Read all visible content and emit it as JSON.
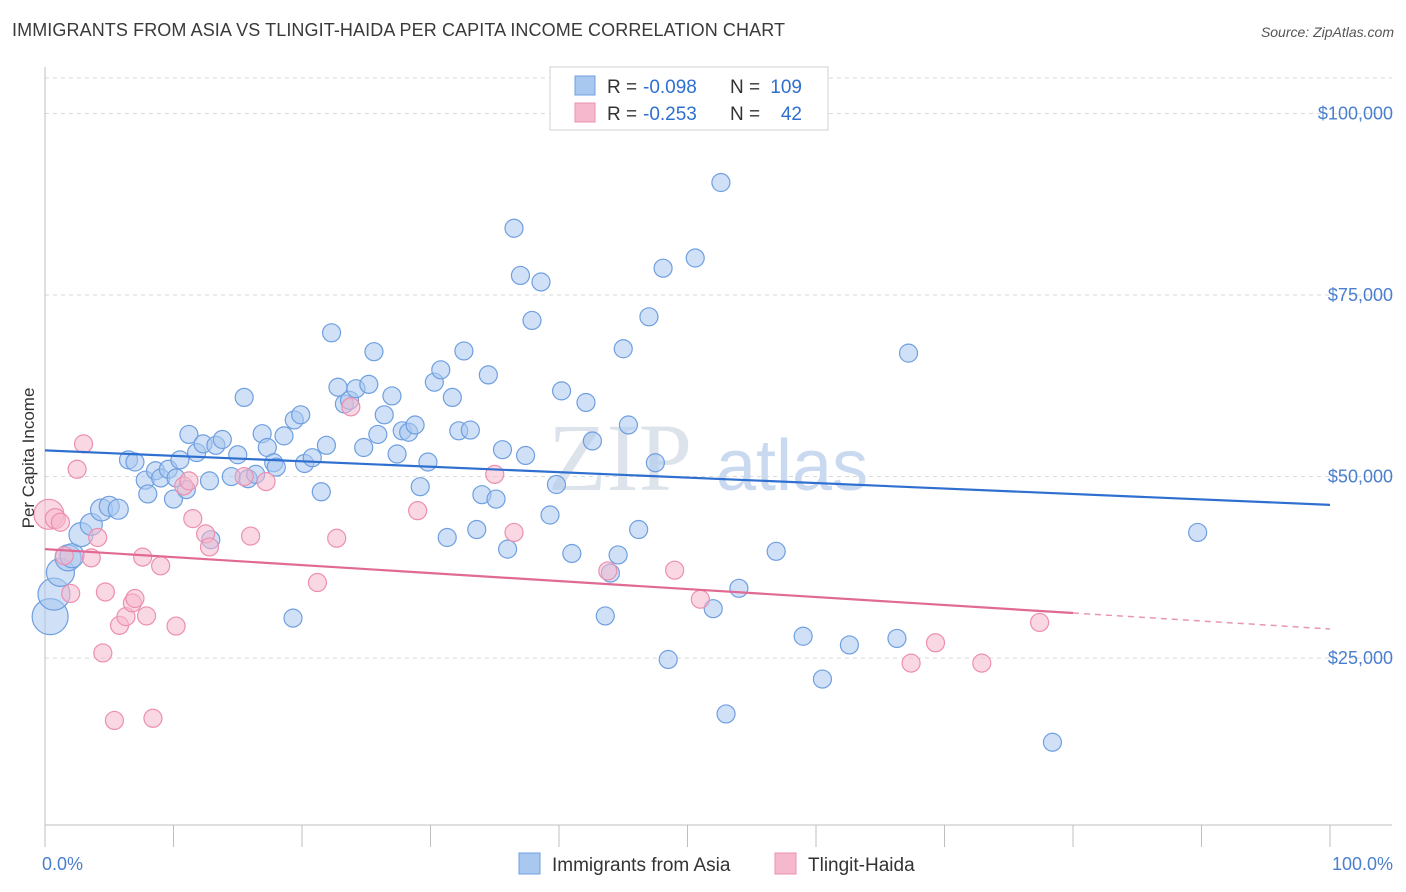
{
  "title": "IMMIGRANTS FROM ASIA VS TLINGIT-HAIDA PER CAPITA INCOME CORRELATION CHART",
  "source": "Source: ZipAtlas.com",
  "watermark": {
    "zip": "ZIP",
    "atlas": "atlas"
  },
  "colors": {
    "blue_fill": "#a9c8f0",
    "blue_stroke": "#6f9fe0",
    "blue_line": "#2e6fd0",
    "pink_fill": "#f5b8cc",
    "pink_stroke": "#ec8fb0",
    "pink_line": "#e06a93",
    "grid": "#d9d9d9",
    "tick_text": "#4a7fcf"
  },
  "legend": {
    "r_label": "R =",
    "n_label": "N =",
    "rows": [
      {
        "r": "-0.098",
        "n": "109",
        "color": "blue"
      },
      {
        "r": "-0.253",
        "n": "42",
        "color": "pink"
      }
    ]
  },
  "bottom_legend": [
    "Immigrants from Asia",
    "Tlingit-Haida"
  ],
  "chart_data": {
    "type": "scatter",
    "title": "IMMIGRANTS FROM ASIA VS TLINGIT-HAIDA PER CAPITA INCOME CORRELATION CHART",
    "xlabel": "",
    "ylabel": "Per Capita Income",
    "xlim": [
      0,
      100
    ],
    "ylim": [
      2000,
      106000
    ],
    "x_tick_labels": [
      "0.0%",
      "100.0%"
    ],
    "y_ticks": [
      25000,
      50000,
      75000,
      100000
    ],
    "y_tick_labels": [
      "$25,000",
      "$50,000",
      "$75,000",
      "$100,000"
    ],
    "grid": "horizontal dashed",
    "legend_position": "top-center",
    "series": [
      {
        "name": "Immigrants from Asia",
        "color": "blue",
        "trend": {
          "x": [
            0,
            100
          ],
          "y": [
            53600,
            46100
          ]
        },
        "points": [
          [
            0.4,
            30700,
            18
          ],
          [
            0.7,
            33800,
            16
          ],
          [
            1.2,
            36800,
            14
          ],
          [
            1.8,
            38800,
            13
          ],
          [
            2.1,
            39100,
            12
          ],
          [
            2.8,
            42000,
            12
          ],
          [
            3.6,
            43400,
            11
          ],
          [
            4.4,
            45400,
            11
          ],
          [
            5.0,
            45900,
            10
          ],
          [
            5.7,
            45500,
            10
          ],
          [
            6.5,
            52300,
            9
          ],
          [
            7.0,
            52000,
            9
          ],
          [
            7.8,
            49500,
            9
          ],
          [
            8.0,
            47600,
            9
          ],
          [
            8.6,
            50800,
            9
          ],
          [
            9.0,
            49800,
            9
          ],
          [
            9.6,
            51000,
            9
          ],
          [
            10.0,
            46900,
            9
          ],
          [
            10.5,
            52300,
            9
          ],
          [
            11.0,
            48200,
            9
          ],
          [
            11.2,
            55800,
            9
          ],
          [
            11.8,
            53300,
            9
          ],
          [
            12.3,
            54500,
            9
          ],
          [
            12.8,
            49400,
            9
          ],
          [
            13.3,
            54300,
            9
          ],
          [
            13.8,
            55100,
            9
          ],
          [
            14.5,
            50000,
            9
          ],
          [
            15.0,
            53000,
            9
          ],
          [
            15.5,
            60900,
            9
          ],
          [
            15.8,
            49700,
            9
          ],
          [
            16.4,
            50300,
            9
          ],
          [
            16.9,
            55900,
            9
          ],
          [
            17.3,
            54000,
            9
          ],
          [
            17.8,
            51900,
            9
          ],
          [
            18.0,
            51300,
            9
          ],
          [
            18.6,
            55600,
            9
          ],
          [
            19.4,
            57800,
            9
          ],
          [
            19.9,
            58500,
            9
          ],
          [
            20.2,
            51800,
            9
          ],
          [
            20.8,
            52600,
            9
          ],
          [
            21.5,
            47900,
            9
          ],
          [
            21.9,
            54300,
            9
          ],
          [
            22.3,
            69800,
            9
          ],
          [
            22.8,
            62300,
            9
          ],
          [
            23.3,
            60000,
            9
          ],
          [
            23.7,
            60500,
            9
          ],
          [
            24.2,
            62100,
            9
          ],
          [
            24.8,
            54000,
            9
          ],
          [
            25.2,
            62700,
            9
          ],
          [
            25.6,
            67200,
            9
          ],
          [
            25.9,
            55800,
            9
          ],
          [
            26.4,
            58500,
            9
          ],
          [
            27.0,
            61100,
            9
          ],
          [
            27.4,
            53100,
            9
          ],
          [
            27.8,
            56300,
            9
          ],
          [
            28.3,
            56100,
            9
          ],
          [
            28.8,
            57100,
            9
          ],
          [
            29.2,
            48600,
            9
          ],
          [
            29.8,
            52000,
            9
          ],
          [
            30.3,
            63000,
            9
          ],
          [
            30.8,
            64700,
            9
          ],
          [
            31.3,
            41600,
            9
          ],
          [
            31.7,
            60900,
            9
          ],
          [
            32.2,
            56300,
            9
          ],
          [
            32.6,
            67300,
            9
          ],
          [
            33.1,
            56400,
            9
          ],
          [
            33.6,
            42700,
            9
          ],
          [
            34.0,
            47500,
            9
          ],
          [
            34.5,
            64000,
            9
          ],
          [
            35.1,
            46900,
            9
          ],
          [
            35.6,
            53700,
            9
          ],
          [
            36.0,
            40000,
            9
          ],
          [
            36.5,
            84200,
            9
          ],
          [
            37.0,
            77700,
            9
          ],
          [
            37.4,
            52900,
            9
          ],
          [
            37.9,
            71500,
            9
          ],
          [
            38.6,
            76800,
            9
          ],
          [
            39.3,
            44700,
            9
          ],
          [
            39.8,
            48900,
            9
          ],
          [
            40.2,
            61800,
            9
          ],
          [
            41.0,
            39400,
            9
          ],
          [
            42.1,
            60200,
            9
          ],
          [
            42.6,
            54900,
            9
          ],
          [
            43.6,
            30800,
            9
          ],
          [
            44.0,
            36700,
            9
          ],
          [
            44.6,
            39200,
            9
          ],
          [
            45.0,
            67600,
            9
          ],
          [
            45.4,
            57100,
            9
          ],
          [
            46.2,
            42700,
            9
          ],
          [
            47.0,
            72000,
            9
          ],
          [
            47.5,
            51900,
            9
          ],
          [
            48.1,
            78700,
            9
          ],
          [
            48.5,
            24800,
            9
          ],
          [
            50.6,
            80100,
            9
          ],
          [
            52.0,
            31800,
            9
          ],
          [
            52.6,
            90500,
            9
          ],
          [
            53.0,
            17300,
            9
          ],
          [
            54.0,
            34600,
            9
          ],
          [
            56.9,
            39700,
            9
          ],
          [
            59.0,
            28000,
            9
          ],
          [
            60.5,
            22100,
            9
          ],
          [
            62.6,
            26800,
            9
          ],
          [
            66.3,
            27700,
            9
          ],
          [
            67.2,
            67000,
            9
          ],
          [
            78.4,
            13400,
            9
          ],
          [
            89.7,
            42300,
            9
          ],
          [
            19.3,
            30500,
            9
          ],
          [
            10.2,
            49800,
            9
          ],
          [
            12.9,
            41300,
            9
          ]
        ]
      },
      {
        "name": "Tlingit-Haida",
        "color": "pink",
        "trend": {
          "x": [
            0,
            80
          ],
          "y": [
            40000,
            31200
          ]
        },
        "trend_dashed_to": {
          "x": 100,
          "y": 29000
        },
        "points": [
          [
            0.3,
            44800,
            15
          ],
          [
            0.8,
            44200,
            10
          ],
          [
            1.2,
            43700,
            9
          ],
          [
            1.5,
            39100,
            9
          ],
          [
            2.0,
            33900,
            9
          ],
          [
            2.5,
            51000,
            9
          ],
          [
            3.0,
            54500,
            9
          ],
          [
            3.6,
            38800,
            9
          ],
          [
            4.1,
            41600,
            9
          ],
          [
            4.5,
            25700,
            9
          ],
          [
            4.7,
            34100,
            9
          ],
          [
            5.4,
            16400,
            9
          ],
          [
            5.8,
            29500,
            9
          ],
          [
            6.3,
            30700,
            9
          ],
          [
            6.8,
            32600,
            9
          ],
          [
            7.0,
            33200,
            9
          ],
          [
            7.6,
            38900,
            9
          ],
          [
            7.9,
            30800,
            9
          ],
          [
            8.4,
            16700,
            9
          ],
          [
            9.0,
            37700,
            9
          ],
          [
            10.2,
            29400,
            9
          ],
          [
            10.8,
            48700,
            9
          ],
          [
            11.2,
            49400,
            9
          ],
          [
            11.5,
            44200,
            9
          ],
          [
            12.5,
            42100,
            9
          ],
          [
            12.8,
            40300,
            9
          ],
          [
            15.5,
            50000,
            9
          ],
          [
            16.0,
            41800,
            9
          ],
          [
            17.2,
            49300,
            9
          ],
          [
            21.2,
            35400,
            9
          ],
          [
            22.7,
            41500,
            9
          ],
          [
            23.8,
            59600,
            9
          ],
          [
            29.0,
            45300,
            9
          ],
          [
            35.0,
            50300,
            9
          ],
          [
            36.5,
            42300,
            9
          ],
          [
            43.8,
            37000,
            9
          ],
          [
            49.0,
            37100,
            9
          ],
          [
            51.0,
            33100,
            9
          ],
          [
            67.4,
            24300,
            9
          ],
          [
            69.3,
            27100,
            9
          ],
          [
            72.9,
            24300,
            9
          ],
          [
            77.4,
            29900,
            9
          ]
        ]
      }
    ]
  }
}
